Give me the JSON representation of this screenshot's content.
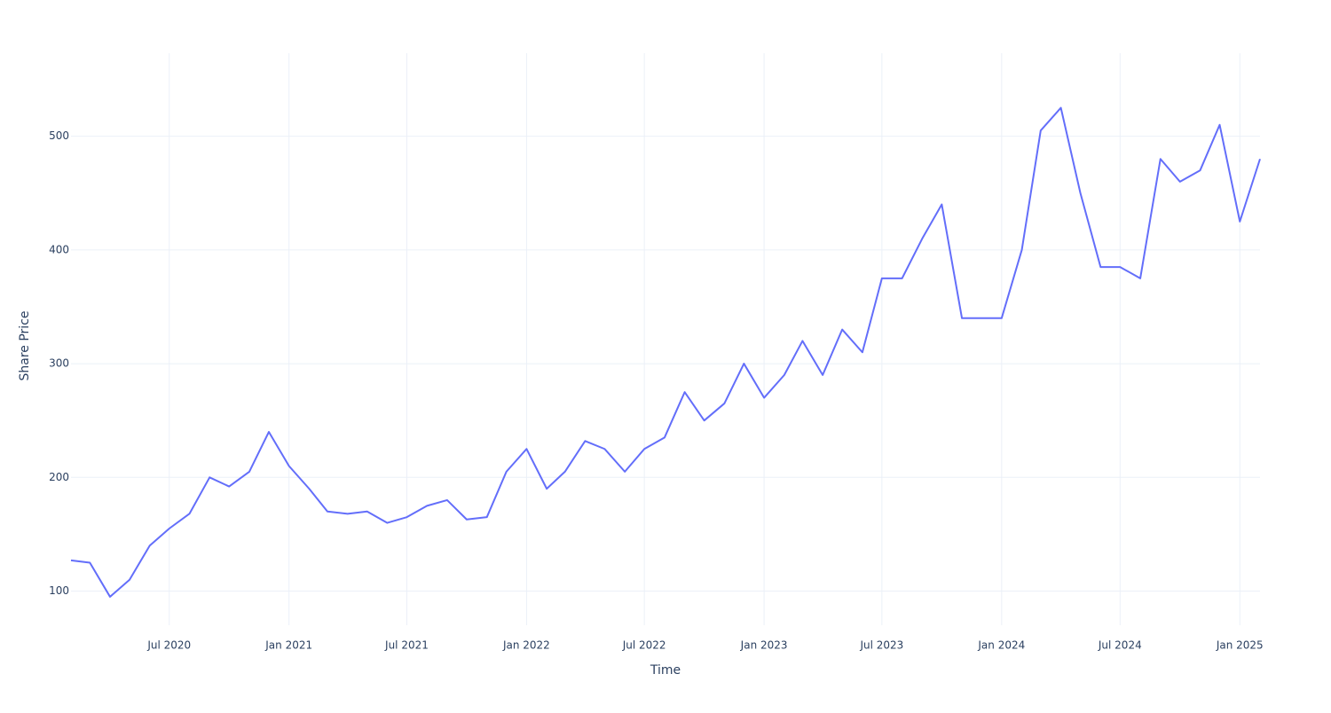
{
  "chart_data": {
    "type": "line",
    "x_label": "Time",
    "y_label": "Share Price",
    "x": [
      "2020-02",
      "2020-03",
      "2020-04",
      "2020-05",
      "2020-06",
      "2020-07",
      "2020-08",
      "2020-09",
      "2020-10",
      "2020-11",
      "2020-12",
      "2021-01",
      "2021-02",
      "2021-03",
      "2021-04",
      "2021-05",
      "2021-06",
      "2021-07",
      "2021-08",
      "2021-09",
      "2021-10",
      "2021-11",
      "2021-12",
      "2022-01",
      "2022-02",
      "2022-03",
      "2022-04",
      "2022-05",
      "2022-06",
      "2022-07",
      "2022-08",
      "2022-09",
      "2022-10",
      "2022-11",
      "2022-12",
      "2023-01",
      "2023-02",
      "2023-03",
      "2023-04",
      "2023-05",
      "2023-06",
      "2023-07",
      "2023-08",
      "2023-09",
      "2023-10",
      "2023-11",
      "2023-12",
      "2024-01",
      "2024-02",
      "2024-03",
      "2024-04",
      "2024-05",
      "2024-06",
      "2024-07",
      "2024-08",
      "2024-09",
      "2024-10",
      "2024-11",
      "2024-12",
      "2025-01",
      "2025-02"
    ],
    "series": [
      {
        "color": "#636efa",
        "values": [
          127,
          125,
          95,
          110,
          140,
          155,
          168,
          200,
          192,
          205,
          240,
          210,
          190,
          170,
          168,
          170,
          160,
          165,
          175,
          180,
          163,
          165,
          205,
          225,
          190,
          205,
          232,
          225,
          205,
          225,
          235,
          275,
          250,
          265,
          300,
          270,
          290,
          320,
          290,
          330,
          310,
          375,
          375,
          410,
          440,
          340,
          340,
          340,
          400,
          505,
          525,
          450,
          385,
          385,
          375,
          480,
          460,
          470,
          510,
          425,
          480
        ]
      }
    ],
    "xlim": [
      "2020-02",
      "2025-02"
    ],
    "xticks": [
      {
        "value": "2020-07",
        "label": "Jul 2020"
      },
      {
        "value": "2021-01",
        "label": "Jan 2021"
      },
      {
        "value": "2021-07",
        "label": "Jul 2021"
      },
      {
        "value": "2022-01",
        "label": "Jan 2022"
      },
      {
        "value": "2022-07",
        "label": "Jul 2022"
      },
      {
        "value": "2023-01",
        "label": "Jan 2023"
      },
      {
        "value": "2023-07",
        "label": "Jul 2023"
      },
      {
        "value": "2024-01",
        "label": "Jan 2024"
      },
      {
        "value": "2024-07",
        "label": "Jul 2024"
      },
      {
        "value": "2025-01",
        "label": "Jan 2025"
      }
    ],
    "ylim": [
      70,
      573
    ],
    "yticks": [
      100,
      200,
      300,
      400,
      500
    ],
    "grid": true
  }
}
